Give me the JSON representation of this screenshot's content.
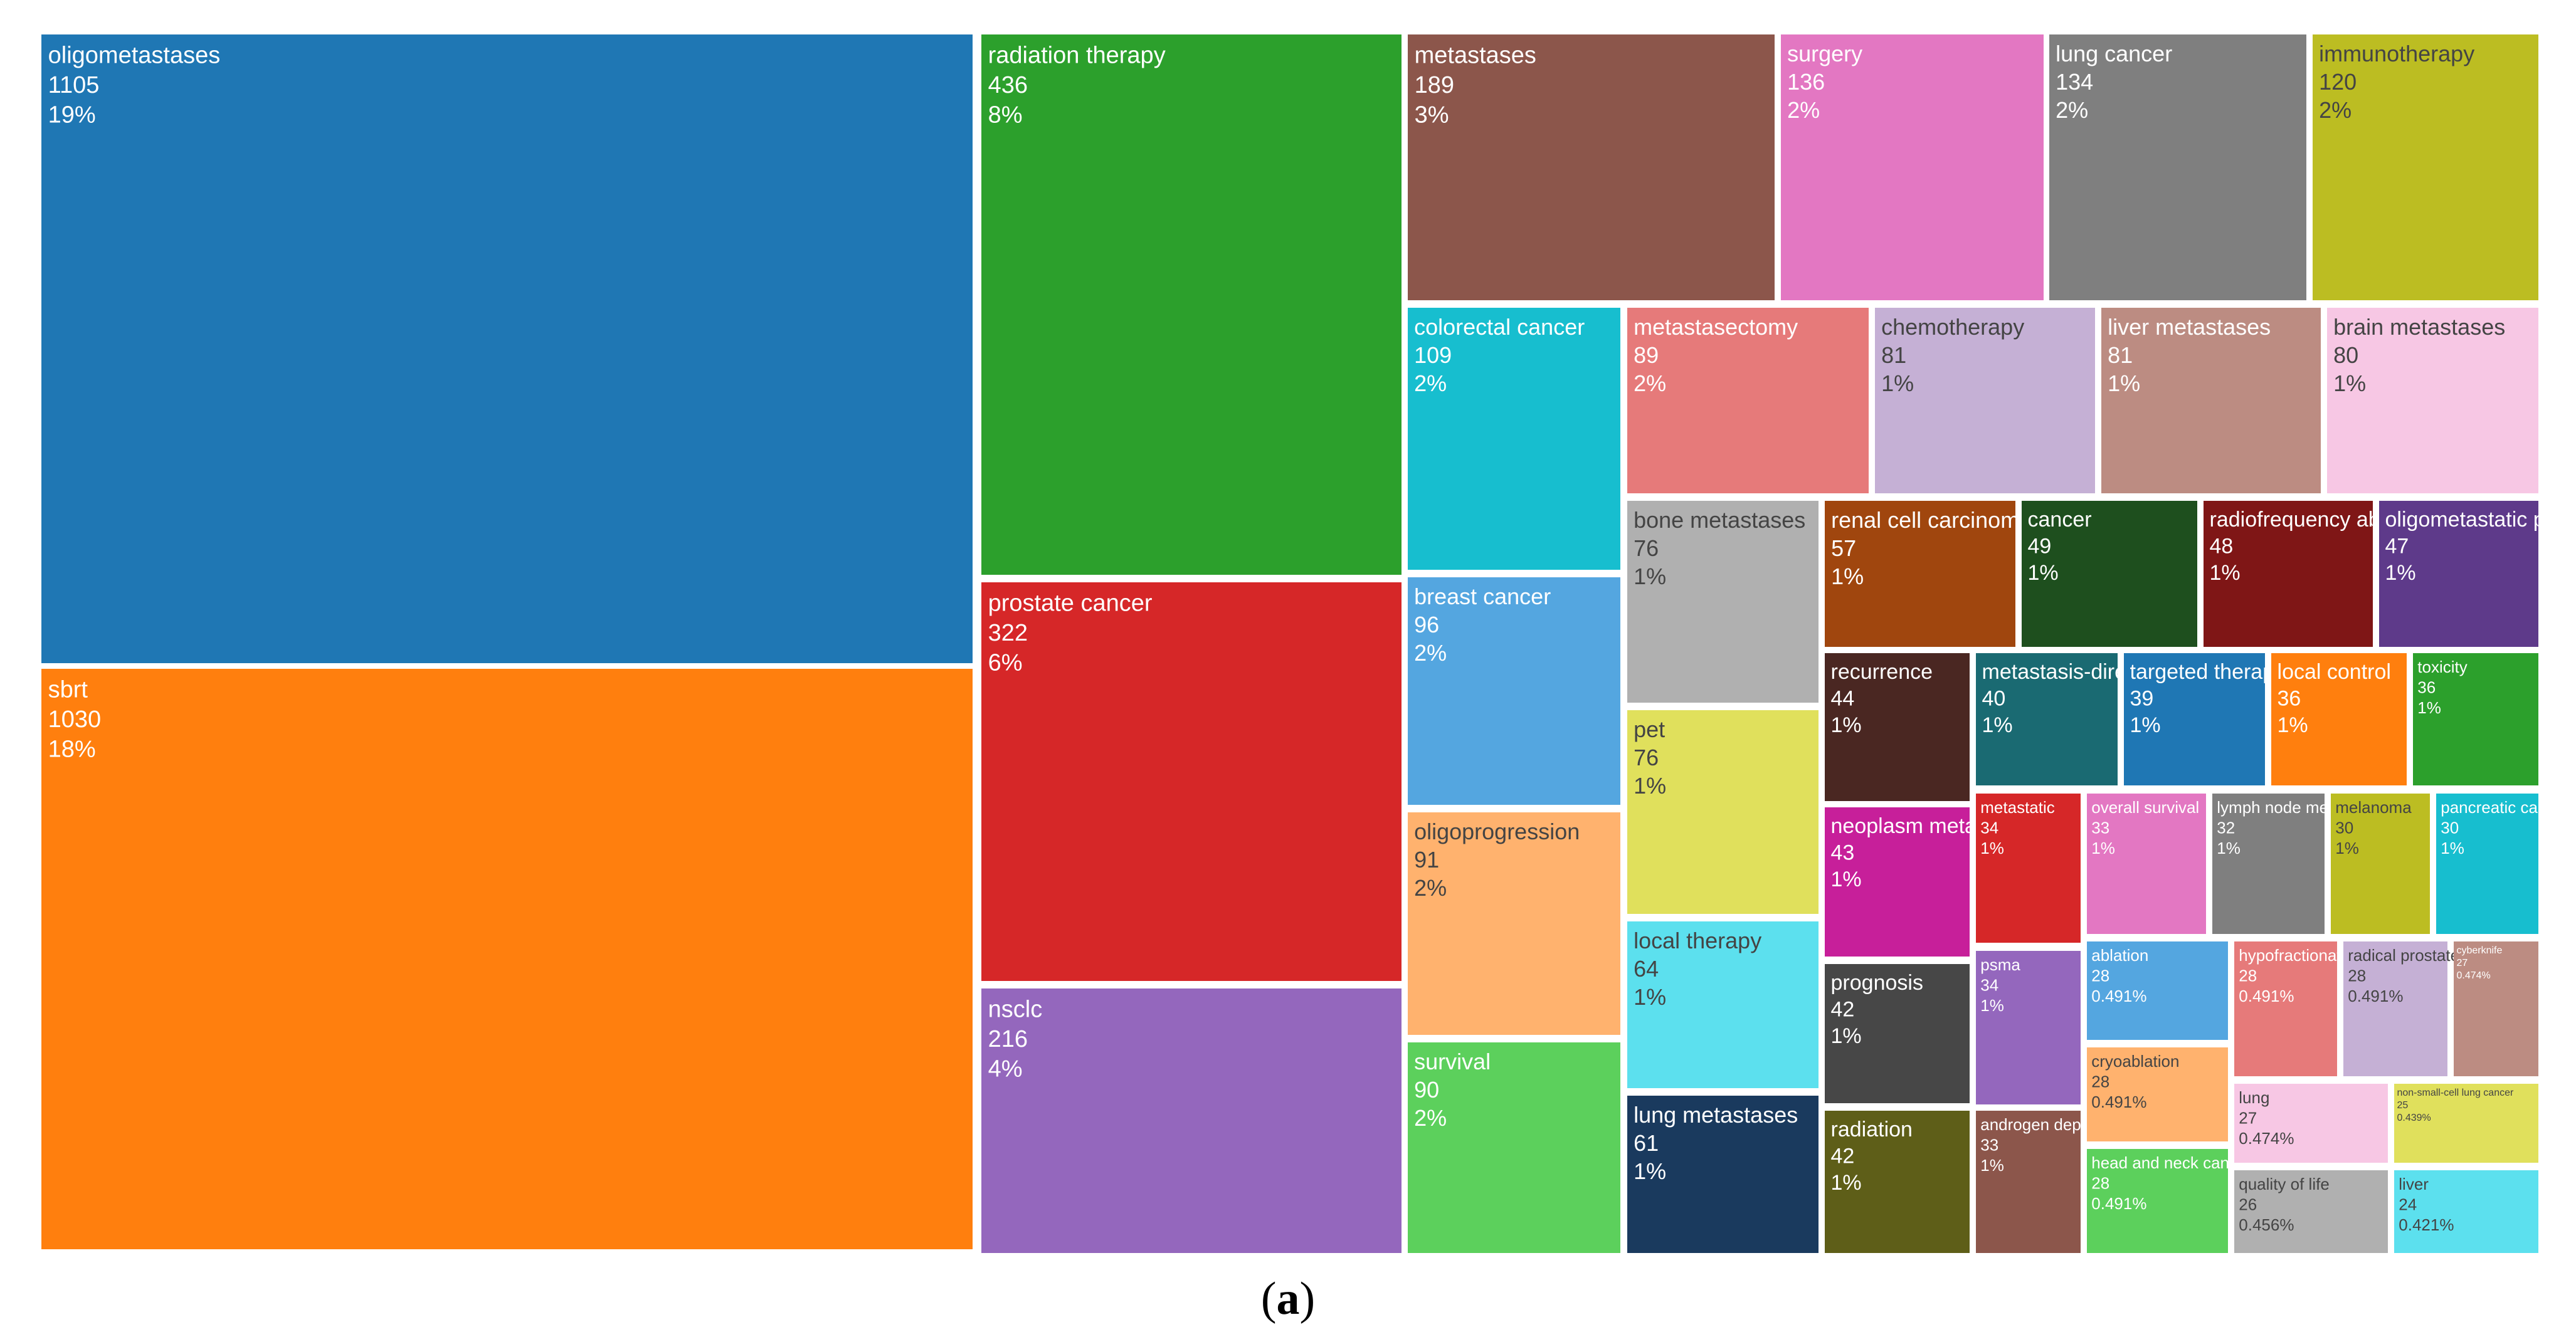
{
  "chart_data": {
    "type": "treemap",
    "tiles": [
      {
        "label": "oligometastases",
        "value": 1105,
        "pct": "19%",
        "color": "#1f77b4"
      },
      {
        "label": "sbrt",
        "value": 1030,
        "pct": "18%",
        "color": "#ff7f0e"
      },
      {
        "label": "radiation therapy",
        "value": 436,
        "pct": "8%",
        "color": "#2ca02c"
      },
      {
        "label": "prostate cancer",
        "value": 322,
        "pct": "6%",
        "color": "#d62728"
      },
      {
        "label": "nsclc",
        "value": 216,
        "pct": "4%",
        "color": "#9467bd"
      },
      {
        "label": "metastases",
        "value": 189,
        "pct": "3%",
        "color": "#8c564b"
      },
      {
        "label": "surgery",
        "value": 136,
        "pct": "2%",
        "color": "#e377c2"
      },
      {
        "label": "lung cancer",
        "value": 134,
        "pct": "2%",
        "color": "#7f7f7f"
      },
      {
        "label": "immunotherapy",
        "value": 120,
        "pct": "2%",
        "color": "#bcbd22"
      },
      {
        "label": "colorectal cancer",
        "value": 109,
        "pct": "2%",
        "color": "#17becf"
      },
      {
        "label": "metastasectomy",
        "value": 89,
        "pct": "2%",
        "color": "#e67a7a"
      },
      {
        "label": "chemotherapy",
        "value": 81,
        "pct": "1%",
        "color": "#c5b0d5"
      },
      {
        "label": "liver metastases",
        "value": 81,
        "pct": "1%",
        "color": "#bc8c82"
      },
      {
        "label": "brain metastases",
        "value": 80,
        "pct": "1%",
        "color": "#f7c7e4"
      },
      {
        "label": "breast cancer",
        "value": 96,
        "pct": "2%",
        "color": "#54a6e0"
      },
      {
        "label": "oligoprogression",
        "value": 91,
        "pct": "2%",
        "color": "#ffb26e"
      },
      {
        "label": "survival",
        "value": 90,
        "pct": "2%",
        "color": "#5cd05c"
      },
      {
        "label": "bone metastases",
        "value": 76,
        "pct": "1%",
        "color": "#b0b0b0"
      },
      {
        "label": "pet",
        "value": 76,
        "pct": "1%",
        "color": "#e0e05c"
      },
      {
        "label": "local therapy",
        "value": 64,
        "pct": "1%",
        "color": "#5ce0ee"
      },
      {
        "label": "lung metastases",
        "value": 61,
        "pct": "1%",
        "color": "#1a3a5e"
      },
      {
        "label": "renal cell carcinoma",
        "value": 57,
        "pct": "1%",
        "color": "#a0460e"
      },
      {
        "label": "cancer",
        "value": 49,
        "pct": "1%",
        "color": "#1e4f1e"
      },
      {
        "label": "radiofrequency ablation",
        "value": 48,
        "pct": "1%",
        "color": "#7f1616"
      },
      {
        "label": "oligometastatic prostate cancer",
        "value": 47,
        "pct": "1%",
        "color": "#5e3a8a"
      },
      {
        "label": "recurrence",
        "value": 44,
        "pct": "1%",
        "color": "#4a2722"
      },
      {
        "label": "metastasis-directed therapy",
        "value": 40,
        "pct": "1%",
        "color": "#1a6a72"
      },
      {
        "label": "targeted therapy",
        "value": 39,
        "pct": "1%",
        "color": "#1f77b4"
      },
      {
        "label": "local control",
        "value": 36,
        "pct": "1%",
        "color": "#ff7f0e"
      },
      {
        "label": "toxicity",
        "value": 36,
        "pct": "1%",
        "color": "#2ca02c"
      },
      {
        "label": "neoplasm metastasis",
        "value": 43,
        "pct": "1%",
        "color": "#c71f9a"
      },
      {
        "label": "metastatic",
        "value": 34,
        "pct": "1%",
        "color": "#d62728"
      },
      {
        "label": "overall survival",
        "value": 33,
        "pct": "1%",
        "color": "#e377c2"
      },
      {
        "label": "lymph node metastases",
        "value": 32,
        "pct": "1%",
        "color": "#7f7f7f"
      },
      {
        "label": "melanoma",
        "value": 30,
        "pct": "1%",
        "color": "#bcbd22"
      },
      {
        "label": "pancreatic cancer",
        "value": 30,
        "pct": "1%",
        "color": "#17becf"
      },
      {
        "label": "prognosis",
        "value": 42,
        "pct": "1%",
        "color": "#474747"
      },
      {
        "label": "radiation",
        "value": 42,
        "pct": "1%",
        "color": "#5e5e18"
      },
      {
        "label": "psma",
        "value": 34,
        "pct": "1%",
        "color": "#9467bd"
      },
      {
        "label": "androgen deprivation therapy",
        "value": 33,
        "pct": "1%",
        "color": "#8c564b"
      },
      {
        "label": "ablation",
        "value": 28,
        "pct": "0.491%",
        "color": "#54a6e0"
      },
      {
        "label": "cryoablation",
        "value": 28,
        "pct": "0.491%",
        "color": "#ffb26e"
      },
      {
        "label": "head and neck cancer",
        "value": 28,
        "pct": "0.491%",
        "color": "#5cd05c"
      },
      {
        "label": "hypofractionation",
        "value": 28,
        "pct": "0.491%",
        "color": "#e67a7a"
      },
      {
        "label": "radical prostatectomy",
        "value": 28,
        "pct": "0.491%",
        "color": "#c5b0d5"
      },
      {
        "label": "cyberknife",
        "value": 27,
        "pct": "0.474%",
        "color": "#bc8c82"
      },
      {
        "label": "lung",
        "value": 27,
        "pct": "0.474%",
        "color": "#f7c7e4"
      },
      {
        "label": "non-small-cell lung cancer",
        "value": 25,
        "pct": "0.439%",
        "color": "#e0e05c"
      },
      {
        "label": "quality of life",
        "value": 26,
        "pct": "0.456%",
        "color": "#b0b0b0"
      },
      {
        "label": "liver",
        "value": 24,
        "pct": "0.421%",
        "color": "#5ce0ee"
      }
    ]
  },
  "caption": {
    "open": "(",
    "letter": "a",
    "close": ")"
  }
}
